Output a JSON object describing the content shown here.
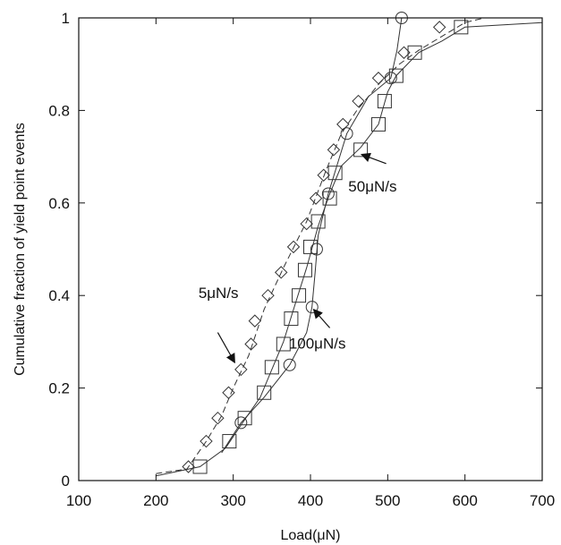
{
  "chart_data": {
    "type": "scatter",
    "title": "",
    "xlabel": "Load(μN)",
    "ylabel": "Cumulative fraction of yield point events",
    "xlim": [
      100,
      700
    ],
    "ylim": [
      0,
      1
    ],
    "x_ticks": [
      "100",
      "200",
      "300",
      "400",
      "500",
      "600",
      "700"
    ],
    "y_ticks": [
      "0",
      "0.2",
      "0.4",
      "0.6",
      "0.8",
      "1"
    ],
    "grid": false,
    "legend": "none",
    "series": [
      {
        "marker": "diamond",
        "line": "dashed",
        "color": "#333333",
        "points": [
          [
            242,
            0.03
          ],
          [
            265,
            0.085
          ],
          [
            280,
            0.135
          ],
          [
            294,
            0.19
          ],
          [
            310,
            0.24
          ],
          [
            323,
            0.295
          ],
          [
            328,
            0.345
          ],
          [
            345,
            0.4
          ],
          [
            362,
            0.45
          ],
          [
            378,
            0.505
          ],
          [
            395,
            0.555
          ],
          [
            407,
            0.61
          ],
          [
            417,
            0.66
          ],
          [
            430,
            0.715
          ],
          [
            442,
            0.77
          ],
          [
            462,
            0.82
          ],
          [
            488,
            0.87
          ],
          [
            521,
            0.925
          ],
          [
            567,
            0.98
          ]
        ],
        "curve": [
          [
            200,
            0.015
          ],
          [
            240,
            0.025
          ],
          [
            265,
            0.085
          ],
          [
            285,
            0.14
          ],
          [
            300,
            0.2
          ],
          [
            320,
            0.27
          ],
          [
            340,
            0.37
          ],
          [
            365,
            0.46
          ],
          [
            395,
            0.56
          ],
          [
            420,
            0.67
          ],
          [
            440,
            0.75
          ],
          [
            460,
            0.8
          ],
          [
            490,
            0.86
          ],
          [
            515,
            0.9
          ],
          [
            540,
            0.93
          ],
          [
            570,
            0.96
          ],
          [
            600,
            0.99
          ],
          [
            625,
            1.0
          ],
          [
            700,
            1.0
          ]
        ]
      },
      {
        "marker": "square",
        "line": "solid",
        "color": "#333333",
        "points": [
          [
            257,
            0.03
          ],
          [
            295,
            0.085
          ],
          [
            315,
            0.135
          ],
          [
            340,
            0.19
          ],
          [
            350,
            0.245
          ],
          [
            365,
            0.295
          ],
          [
            375,
            0.35
          ],
          [
            385,
            0.4
          ],
          [
            393,
            0.455
          ],
          [
            400,
            0.505
          ],
          [
            410,
            0.56
          ],
          [
            425,
            0.61
          ],
          [
            432,
            0.665
          ],
          [
            465,
            0.715
          ],
          [
            488,
            0.77
          ],
          [
            496,
            0.82
          ],
          [
            511,
            0.875
          ],
          [
            535,
            0.925
          ],
          [
            595,
            0.98
          ]
        ],
        "curve": [
          [
            200,
            0.01
          ],
          [
            257,
            0.03
          ],
          [
            290,
            0.07
          ],
          [
            310,
            0.12
          ],
          [
            335,
            0.18
          ],
          [
            350,
            0.24
          ],
          [
            365,
            0.3
          ],
          [
            380,
            0.38
          ],
          [
            395,
            0.46
          ],
          [
            410,
            0.55
          ],
          [
            425,
            0.62
          ],
          [
            440,
            0.68
          ],
          [
            465,
            0.72
          ],
          [
            488,
            0.77
          ],
          [
            500,
            0.84
          ],
          [
            511,
            0.875
          ],
          [
            540,
            0.925
          ],
          [
            570,
            0.95
          ],
          [
            600,
            0.98
          ],
          [
            700,
            0.99
          ]
        ]
      },
      {
        "marker": "circle",
        "line": "solid",
        "color": "#333333",
        "points": [
          [
            310,
            0.125
          ],
          [
            373,
            0.25
          ],
          [
            402,
            0.375
          ],
          [
            408,
            0.5
          ],
          [
            423,
            0.62
          ],
          [
            447,
            0.75
          ],
          [
            504,
            0.87
          ],
          [
            518,
            1.0
          ]
        ],
        "curve": [
          [
            285,
            0.06
          ],
          [
            310,
            0.125
          ],
          [
            340,
            0.18
          ],
          [
            373,
            0.25
          ],
          [
            395,
            0.32
          ],
          [
            402,
            0.375
          ],
          [
            406,
            0.45
          ],
          [
            410,
            0.53
          ],
          [
            423,
            0.62
          ],
          [
            447,
            0.75
          ],
          [
            475,
            0.83
          ],
          [
            504,
            0.87
          ],
          [
            512,
            0.93
          ],
          [
            518,
            1.0
          ]
        ]
      }
    ],
    "annotations": [
      {
        "text": "5μN/s",
        "label_xy": [
          255,
          0.395
        ],
        "arrow_from": [
          280,
          0.32
        ],
        "arrow_to": [
          302,
          0.255
        ]
      },
      {
        "text": "100μN/s",
        "label_xy": [
          372,
          0.285
        ],
        "arrow_from": [
          425,
          0.33
        ],
        "arrow_to": [
          404,
          0.37
        ]
      },
      {
        "text": "50μN/s",
        "label_xy": [
          449,
          0.625
        ],
        "arrow_from": [
          498,
          0.685
        ],
        "arrow_to": [
          466,
          0.705
        ]
      }
    ]
  }
}
